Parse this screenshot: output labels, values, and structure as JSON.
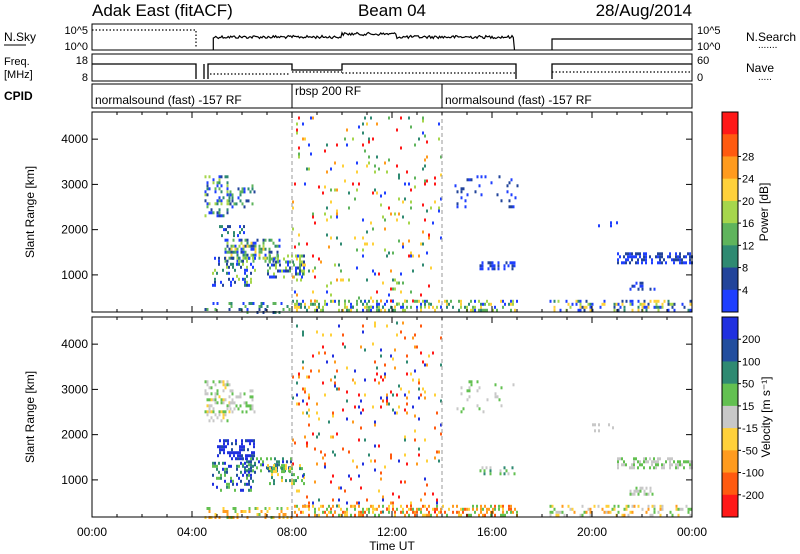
{
  "header": {
    "title_left": "Adak East (fitACF)",
    "title_center": "Beam 04",
    "title_right": "28/Aug/2014"
  },
  "top_panels": {
    "nsky": {
      "label": "N.Sky",
      "left_ticks": [
        "10^5",
        "10^0"
      ],
      "right_ticks": [
        "10^5",
        "10^0"
      ],
      "right_label": "N.Search",
      "right_legend": "......."
    },
    "freq": {
      "label_line1": "Freq.",
      "label_line2": "[MHz]",
      "left_ticks": [
        "18",
        "8"
      ],
      "right_ticks": [
        "60",
        "0"
      ],
      "right_label": "Nave",
      "right_legend": "....."
    },
    "cpid": {
      "label": "CPID",
      "segments": [
        {
          "start_hour": 0.0,
          "end_hour": 8.0,
          "label": "normalsound (fast) -157 RF"
        },
        {
          "start_hour": 8.0,
          "end_hour": 14.0,
          "label": "rbsp 200 RF"
        },
        {
          "start_hour": 14.0,
          "end_hour": 24.0,
          "label": "normalsound (fast) -157 RF"
        }
      ]
    }
  },
  "x_axis": {
    "label": "Time UT",
    "tick_labels": [
      "00:00",
      "04:00",
      "08:00",
      "12:00",
      "16:00",
      "20:00",
      "00:00"
    ]
  },
  "chart_data": [
    {
      "type": "heatmap",
      "name": "power",
      "ylabel": "Slant Range [km]",
      "ylim": [
        180,
        4600
      ],
      "xlim_hours": [
        0,
        24
      ],
      "y_ticks": [
        1000,
        2000,
        3000,
        4000
      ],
      "colorbar": {
        "label": "Power [dB]",
        "ticks": [
          "4",
          "8",
          "12",
          "16",
          "20",
          "24",
          "28"
        ],
        "colors": [
          "#1f3fff",
          "#22449a",
          "#2f8a72",
          "#5fb45c",
          "#a6d64c",
          "#ffd13a",
          "#ff9b1e",
          "#ff5a10",
          "#ff1818"
        ]
      },
      "scatter_regions": [
        {
          "hours": [
            4.5,
            5.5
          ],
          "range_km": [
            2300,
            3200
          ],
          "density": 0.35,
          "color_idx": [
            0,
            1,
            2,
            3,
            4
          ]
        },
        {
          "hours": [
            5.5,
            6.5
          ],
          "range_km": [
            2500,
            3000
          ],
          "density": 0.3,
          "color_idx": [
            0,
            1,
            2,
            3
          ]
        },
        {
          "hours": [
            5.0,
            6.3
          ],
          "range_km": [
            1900,
            2100
          ],
          "density": 0.3,
          "color_idx": [
            0,
            1,
            2
          ]
        },
        {
          "hours": [
            5.3,
            7.5
          ],
          "range_km": [
            1300,
            1800
          ],
          "density": 0.45,
          "color_idx": [
            0,
            1,
            2,
            3,
            4,
            5
          ]
        },
        {
          "hours": [
            4.8,
            6.5
          ],
          "range_km": [
            800,
            1400
          ],
          "density": 0.25,
          "color_idx": [
            0,
            1,
            2,
            4
          ]
        },
        {
          "hours": [
            7.0,
            8.5
          ],
          "range_km": [
            950,
            1450
          ],
          "density": 0.4,
          "color_idx": [
            0,
            1,
            3,
            4
          ]
        },
        {
          "hours": [
            8.0,
            14.0
          ],
          "range_km": [
            300,
            4500
          ],
          "density": 0.05,
          "color_idx": [
            0,
            2,
            3,
            4,
            5,
            6,
            8
          ]
        },
        {
          "hours": [
            15.5,
            17.0
          ],
          "range_km": [
            1150,
            1300
          ],
          "density": 0.4,
          "color_idx": [
            0,
            1
          ]
        },
        {
          "hours": [
            14.5,
            17.0
          ],
          "range_km": [
            2500,
            3200
          ],
          "density": 0.08,
          "color_idx": [
            0,
            1
          ]
        },
        {
          "hours": [
            20.0,
            21.0
          ],
          "range_km": [
            2100,
            2250
          ],
          "density": 0.15,
          "color_idx": [
            0
          ]
        },
        {
          "hours": [
            21.0,
            24.0
          ],
          "range_km": [
            1250,
            1500
          ],
          "density": 0.5,
          "color_idx": [
            0,
            1
          ]
        },
        {
          "hours": [
            21.5,
            22.5
          ],
          "range_km": [
            700,
            850
          ],
          "density": 0.4,
          "color_idx": [
            0,
            1
          ]
        },
        {
          "hours": [
            4.5,
            8.0
          ],
          "range_km": [
            200,
            400
          ],
          "density": 0.25,
          "color_idx": [
            0,
            1,
            2,
            3
          ]
        },
        {
          "hours": [
            8.0,
            17.0
          ],
          "range_km": [
            200,
            450
          ],
          "density": 0.35,
          "color_idx": [
            0,
            2,
            3,
            4,
            5
          ]
        },
        {
          "hours": [
            18.3,
            24.0
          ],
          "range_km": [
            200,
            450
          ],
          "density": 0.3,
          "color_idx": [
            0,
            1,
            2,
            4,
            5
          ]
        }
      ]
    },
    {
      "type": "heatmap",
      "name": "velocity",
      "ylabel": "Slant Range [km]",
      "ylim": [
        180,
        4600
      ],
      "xlim_hours": [
        0,
        24
      ],
      "y_ticks": [
        1000,
        2000,
        3000,
        4000
      ],
      "colorbar": {
        "label": "Velocity [m s⁻¹]",
        "ticks": [
          "200",
          "100",
          "50",
          "15",
          "-15",
          "-50",
          "-100",
          "-200"
        ],
        "colors": [
          "#2030e0",
          "#224e9e",
          "#2f8a72",
          "#63c051",
          "#c8c8c8",
          "#ffd13a",
          "#ff9b1e",
          "#ff5a10",
          "#ff1818"
        ]
      },
      "scatter_regions": [
        {
          "hours": [
            4.5,
            5.5
          ],
          "range_km": [
            2300,
            3200
          ],
          "density": 0.35,
          "color_idx": [
            4,
            4,
            3,
            5
          ]
        },
        {
          "hours": [
            5.5,
            6.5
          ],
          "range_km": [
            2500,
            3000
          ],
          "density": 0.3,
          "color_idx": [
            4,
            4,
            3
          ]
        },
        {
          "hours": [
            5.0,
            6.5
          ],
          "range_km": [
            1500,
            1900
          ],
          "density": 0.5,
          "color_idx": [
            0,
            0,
            1,
            0
          ]
        },
        {
          "hours": [
            6.0,
            8.0
          ],
          "range_km": [
            1200,
            1500
          ],
          "density": 0.45,
          "color_idx": [
            0,
            1,
            2,
            3
          ]
        },
        {
          "hours": [
            4.8,
            6.5
          ],
          "range_km": [
            800,
            1400
          ],
          "density": 0.3,
          "color_idx": [
            2,
            3,
            1,
            0
          ]
        },
        {
          "hours": [
            7.0,
            8.5
          ],
          "range_km": [
            950,
            1350
          ],
          "density": 0.4,
          "color_idx": [
            3,
            3,
            5,
            2
          ]
        },
        {
          "hours": [
            8.0,
            14.0
          ],
          "range_km": [
            300,
            4500
          ],
          "density": 0.05,
          "color_idx": [
            0,
            2,
            5,
            6,
            7,
            8
          ]
        },
        {
          "hours": [
            15.5,
            17.0
          ],
          "range_km": [
            1150,
            1300
          ],
          "density": 0.4,
          "color_idx": [
            3,
            2,
            4
          ]
        },
        {
          "hours": [
            14.5,
            17.0
          ],
          "range_km": [
            2500,
            3200
          ],
          "density": 0.08,
          "color_idx": [
            4,
            3
          ]
        },
        {
          "hours": [
            20.0,
            21.0
          ],
          "range_km": [
            2100,
            2250
          ],
          "density": 0.15,
          "color_idx": [
            4
          ]
        },
        {
          "hours": [
            21.0,
            24.0
          ],
          "range_km": [
            1250,
            1500
          ],
          "density": 0.5,
          "color_idx": [
            4,
            4,
            3
          ]
        },
        {
          "hours": [
            21.5,
            22.5
          ],
          "range_km": [
            700,
            850
          ],
          "density": 0.4,
          "color_idx": [
            4,
            3
          ]
        },
        {
          "hours": [
            4.5,
            8.0
          ],
          "range_km": [
            200,
            400
          ],
          "density": 0.25,
          "color_idx": [
            5,
            6,
            3
          ]
        },
        {
          "hours": [
            8.0,
            17.0
          ],
          "range_km": [
            200,
            450
          ],
          "density": 0.35,
          "color_idx": [
            6,
            5,
            7,
            3
          ]
        },
        {
          "hours": [
            18.3,
            24.0
          ],
          "range_km": [
            200,
            450
          ],
          "density": 0.3,
          "color_idx": [
            5,
            6,
            3,
            4
          ]
        }
      ]
    }
  ]
}
